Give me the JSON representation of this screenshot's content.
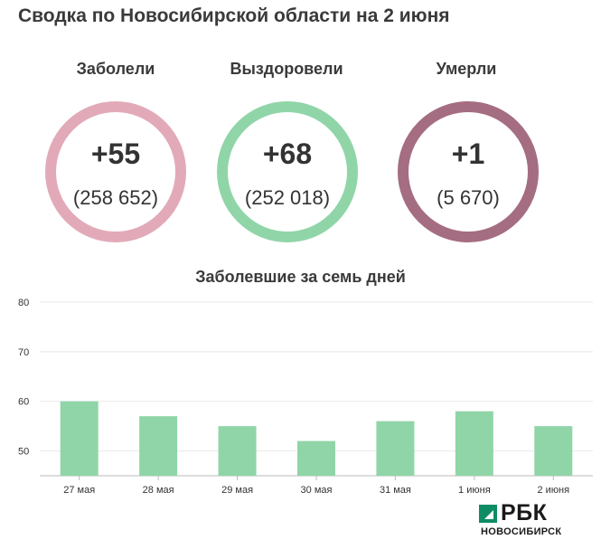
{
  "title": "Сводка по Новосибирской области на 2 июня",
  "stats": [
    {
      "label": "Заболели",
      "delta": "+55",
      "total": "(258 652)",
      "color": "#e2aab8"
    },
    {
      "label": "Выздоровели",
      "delta": "+68",
      "total": "(252 018)",
      "color": "#90d5a8"
    },
    {
      "label": "Умерли",
      "delta": "+1",
      "total": "(5 670)",
      "color": "#a56d82"
    }
  ],
  "chart_data": {
    "type": "bar",
    "title": "Заболевшие за семь дней",
    "categories": [
      "27 мая",
      "28 мая",
      "29 мая",
      "30 мая",
      "31 мая",
      "1 июня",
      "2 июня"
    ],
    "values": [
      60,
      57,
      55,
      52,
      56,
      58,
      55
    ],
    "ylim": [
      45,
      80
    ],
    "yticks": [
      50,
      60,
      70,
      80
    ],
    "grid": true,
    "bar_color": "#90d5a8"
  },
  "logo": {
    "text": "РБК",
    "city": "НОВОСИБИРСК"
  }
}
